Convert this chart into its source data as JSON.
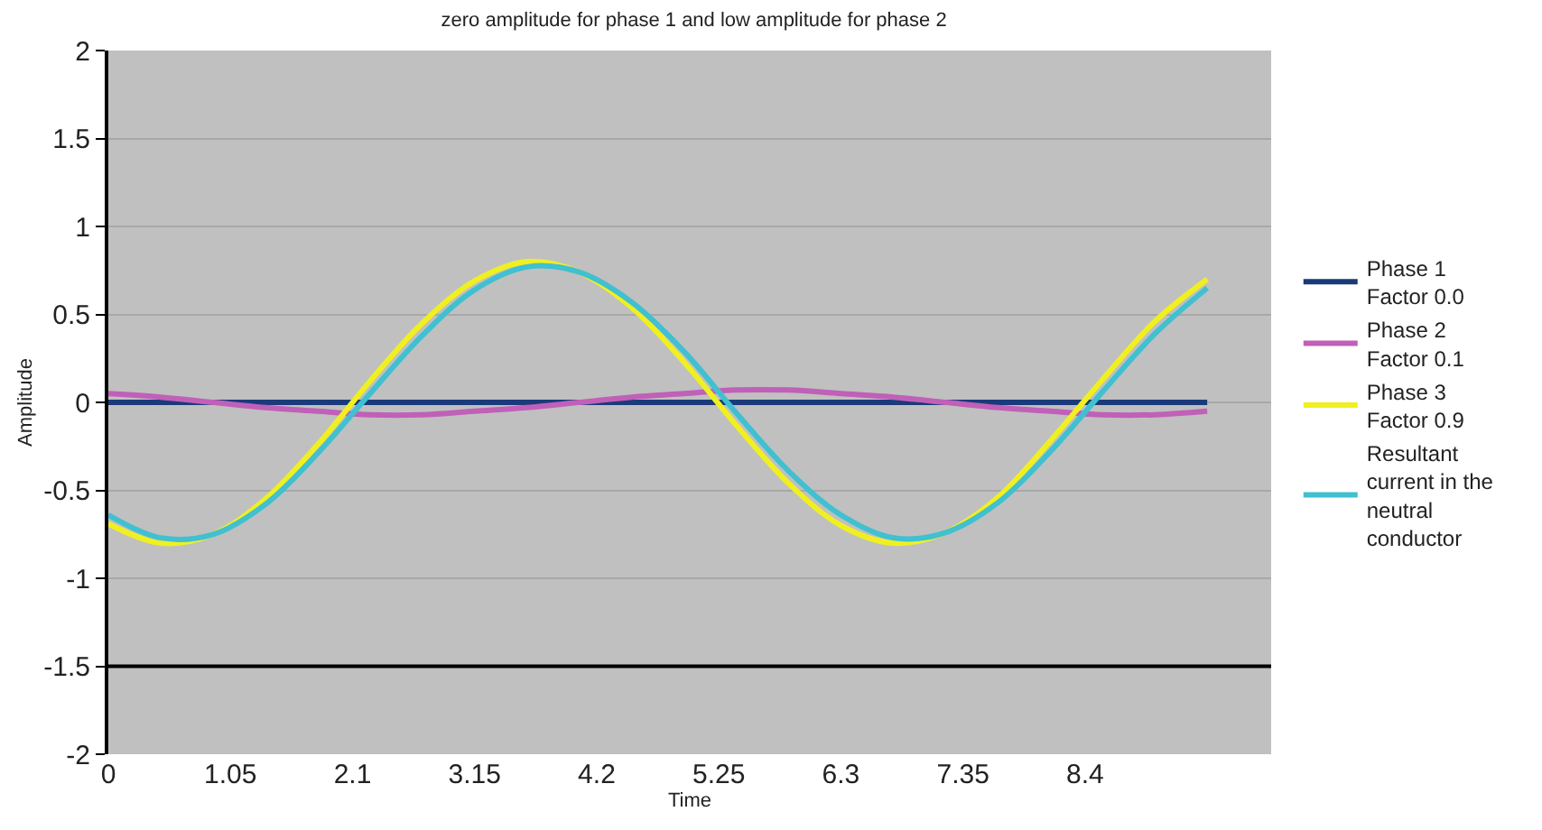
{
  "chart_data": {
    "type": "line",
    "title": "zero amplitude for phase 1 and low amplitude for phase 2",
    "xlabel": "Time",
    "ylabel": "Amplitude",
    "x": [
      0,
      0.45,
      0.9,
      1.35,
      1.8,
      2.25,
      2.7,
      3.15,
      3.6,
      4.05,
      4.5,
      4.95,
      5.4,
      5.85,
      6.3,
      6.75,
      7.2,
      7.65,
      8.1,
      8.55,
      9.0,
      9.45
    ],
    "series": [
      {
        "name": "Phase 1\nFactor 0.0",
        "color": "#1a3a7a",
        "values": [
          0,
          0,
          0,
          0,
          0,
          0,
          0,
          0,
          0,
          0,
          0,
          0,
          0,
          0,
          0,
          0,
          0,
          0,
          0,
          0,
          0,
          0
        ]
      },
      {
        "name": "Phase 2\nFactor 0.1",
        "color": "#c060b8",
        "values": [
          0.05,
          0.03,
          0,
          -0.03,
          -0.05,
          -0.07,
          -0.07,
          -0.05,
          -0.03,
          0,
          0.03,
          0.05,
          0.07,
          0.07,
          0.05,
          0.03,
          0,
          -0.03,
          -0.05,
          -0.07,
          -0.07,
          -0.05
        ]
      },
      {
        "name": "Phase 3\nFactor 0.9",
        "color": "#f0f020",
        "values": [
          -0.69,
          -0.8,
          -0.75,
          -0.55,
          -0.24,
          0.12,
          0.45,
          0.69,
          0.8,
          0.74,
          0.54,
          0.23,
          -0.13,
          -0.46,
          -0.7,
          -0.8,
          -0.74,
          -0.54,
          -0.22,
          0.13,
          0.46,
          0.7
        ]
      },
      {
        "name": "Resultant\ncurrent in the\nneutral\nconductor",
        "color": "#40c0d0",
        "values": [
          -0.64,
          -0.77,
          -0.75,
          -0.58,
          -0.29,
          0.05,
          0.38,
          0.64,
          0.77,
          0.74,
          0.57,
          0.29,
          -0.06,
          -0.39,
          -0.64,
          -0.77,
          -0.74,
          -0.57,
          -0.28,
          0.06,
          0.39,
          0.65
        ]
      }
    ],
    "xlim": [
      0,
      10.0
    ],
    "xticks": [
      0,
      1.05,
      2.1,
      3.15,
      4.2,
      5.25,
      6.3,
      7.35,
      8.4
    ],
    "ylim": [
      -2,
      2
    ],
    "yticks": [
      -2,
      -1.5,
      -1,
      -0.5,
      0,
      0.5,
      1,
      1.5,
      2
    ],
    "ref_lines": [
      {
        "axis": "y",
        "value": -1.5,
        "color": "#000000"
      }
    ],
    "grid": "y",
    "legend": "right",
    "marker": "none",
    "line_style": "solid"
  }
}
